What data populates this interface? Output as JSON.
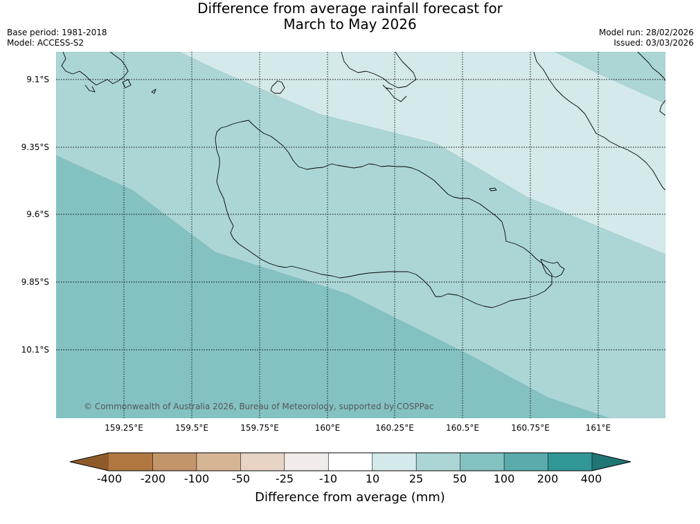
{
  "header": {
    "title_line1": "Difference from average rainfall forecast for",
    "title_line2": "March to May 2026",
    "base_period": "Base period: 1981-2018",
    "model": "Model: ACCESS-S2",
    "model_run": "Model run: 28/02/2026",
    "issued": "Issued: 03/03/2026"
  },
  "map": {
    "latitude_labels": [
      "9.1°S",
      "9.35°S",
      "9.6°S",
      "9.85°S",
      "10.1°S"
    ],
    "longitude_labels": [
      "159.25°E",
      "159.5°E",
      "159.75°E",
      "160°E",
      "160.25°E",
      "160.5°E",
      "160.75°E",
      "161°E"
    ],
    "copyright": "© Commonwealth of Australia 2026, Bureau of Meteorology, supported by COSPPac",
    "zone_colors": {
      "10_to_25": "#d4e9e9",
      "25_to_50": "#acd6d6",
      "50_to_100": "#84c2c2"
    }
  },
  "legend": {
    "title": "Difference from average (mm)",
    "tick_labels": [
      "-400",
      "-200",
      "-100",
      "-50",
      "-25",
      "-10",
      "10",
      "25",
      "50",
      "100",
      "200",
      "400"
    ],
    "colors": [
      "#8f5a2a",
      "#b07840",
      "#c3956a",
      "#d6b595",
      "#e7d4c4",
      "#f1ece9",
      "#ffffff",
      "#d4e9e9",
      "#acd6d6",
      "#84c2c2",
      "#5aabab",
      "#319797",
      "#207575"
    ]
  }
}
